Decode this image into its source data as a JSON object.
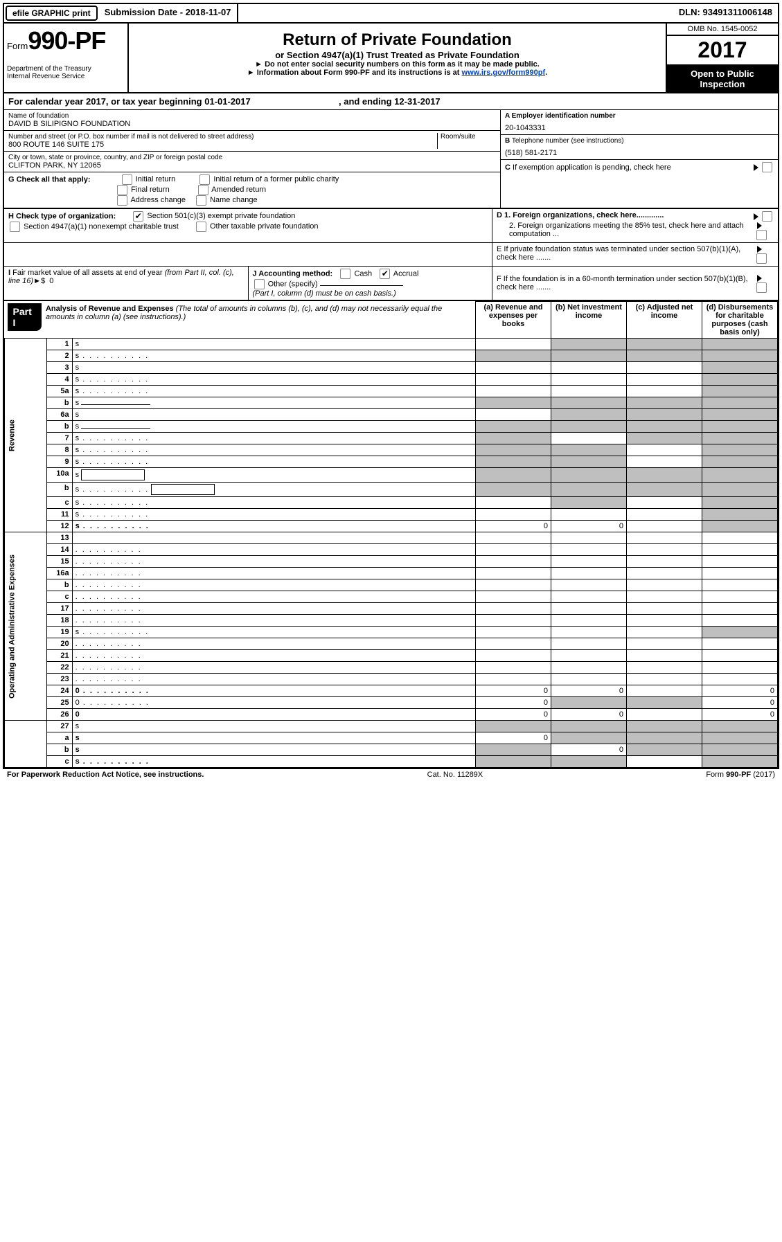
{
  "top": {
    "efile_btn": "efile GRAPHIC print",
    "submission_label": "Submission Date - 2018-11-07",
    "dln": "DLN: 93491311006148"
  },
  "header": {
    "form_word": "Form",
    "form_num": "990-PF",
    "dept1": "Department of the Treasury",
    "dept2": "Internal Revenue Service",
    "title": "Return of Private Foundation",
    "subtitle": "or Section 4947(a)(1) Trust Treated as Private Foundation",
    "instr1": "► Do not enter social security numbers on this form as it may be made public.",
    "instr2_pre": "► Information about Form 990-PF and its instructions is at ",
    "instr2_link": "www.irs.gov/form990pf",
    "instr2_post": ".",
    "omb": "OMB No. 1545-0052",
    "year": "2017",
    "open": "Open to Public Inspection"
  },
  "calendar": {
    "pre": "For calendar year 2017, or tax year beginning ",
    "begin": "01-01-2017",
    "mid": " , and ending ",
    "end": "12-31-2017"
  },
  "id": {
    "name_label": "Name of foundation",
    "name": "DAVID B SILIPIGNO FOUNDATION",
    "street_label": "Number and street (or P.O. box number if mail is not delivered to street address)",
    "room_label": "Room/suite",
    "street": "800 ROUTE 146 SUITE 175",
    "city_label": "City or town, state or province, country, and ZIP or foreign postal code",
    "city": "CLIFTON PARK, NY  12065",
    "ein_label": "A Employer identification number",
    "ein": "20-1043331",
    "tel_label": "B Telephone number (see instructions)",
    "tel": "(518) 581-2171",
    "c_label": "C If exemption application is pending, check here",
    "d1": "D 1. Foreign organizations, check here.............",
    "d2": "2. Foreign organizations meeting the 85% test, check here and attach computation ...",
    "e": "E  If private foundation status was terminated under section 507(b)(1)(A), check here .......",
    "f": "F  If the foundation is in a 60-month termination under section 507(b)(1)(B), check here .......",
    "g_label": "G Check all that apply:",
    "g_initial": "Initial return",
    "g_initial_former": "Initial return of a former public charity",
    "g_final": "Final return",
    "g_amended": "Amended return",
    "g_address": "Address change",
    "g_name": "Name change",
    "h_label": "H Check type of organization:",
    "h_501c3": "Section 501(c)(3) exempt private foundation",
    "h_4947": "Section 4947(a)(1) nonexempt charitable trust",
    "h_other": "Other taxable private foundation",
    "i_label": "I Fair market value of all assets at end of year (from Part II, col. (c), line 16)►$  0",
    "j_label": "J Accounting method:",
    "j_cash": "Cash",
    "j_accrual": "Accrual",
    "j_other": "Other (specify)",
    "j_note": "(Part I, column (d) must be on cash basis.)"
  },
  "part1": {
    "tab": "Part I",
    "title": "Analysis of Revenue and Expenses",
    "note": " (The total of amounts in columns (b), (c), and (d) may not necessarily equal the amounts in column (a) (see instructions).)",
    "col_a": "(a)   Revenue and expenses per books",
    "col_b": "(b)  Net investment income",
    "col_c": "(c)  Adjusted net income",
    "col_d": "(d)  Disbursements for charitable purposes (cash basis only)",
    "revenue_label": "Revenue",
    "expenses_label": "Operating and Administrative Expenses"
  },
  "rows_rev": [
    {
      "n": "1",
      "d": "s",
      "a": "",
      "b": "s",
      "c": "s"
    },
    {
      "n": "2",
      "d": "s",
      "dots": 1,
      "a": "s",
      "b": "s",
      "c": "s",
      "bold_not": 1
    },
    {
      "n": "3",
      "d": "s",
      "a": "",
      "b": "",
      "c": ""
    },
    {
      "n": "4",
      "d": "s",
      "dots": 1,
      "a": "",
      "b": "",
      "c": ""
    },
    {
      "n": "5a",
      "d": "s",
      "dots": 1,
      "a": "",
      "b": "",
      "c": ""
    },
    {
      "n": "b",
      "d": "s",
      "input": 1,
      "a": "s",
      "b": "s",
      "c": "s"
    },
    {
      "n": "6a",
      "d": "s",
      "a": "",
      "b": "s",
      "c": "s"
    },
    {
      "n": "b",
      "d": "s",
      "input": 1,
      "under": 1,
      "a": "s",
      "b": "s",
      "c": "s"
    },
    {
      "n": "7",
      "d": "s",
      "dots": 1,
      "a": "s",
      "b": "",
      "c": "s"
    },
    {
      "n": "8",
      "d": "s",
      "dots": 1,
      "a": "s",
      "b": "s",
      "c": ""
    },
    {
      "n": "9",
      "d": "s",
      "dots": 1,
      "a": "s",
      "b": "s",
      "c": ""
    },
    {
      "n": "10a",
      "d": "s",
      "box": 1,
      "a": "s",
      "b": "s",
      "c": "s"
    },
    {
      "n": "b",
      "d": "s",
      "dots": 1,
      "box": 1,
      "a": "s",
      "b": "s",
      "c": "s"
    },
    {
      "n": "c",
      "d": "s",
      "dots": 1,
      "a": "",
      "b": "s",
      "c": ""
    },
    {
      "n": "11",
      "d": "s",
      "dots": 1,
      "a": "",
      "b": "",
      "c": ""
    },
    {
      "n": "12",
      "d": "s",
      "dots": 1,
      "bold": 1,
      "a": "0",
      "b": "0",
      "c": ""
    }
  ],
  "rows_exp": [
    {
      "n": "13",
      "d": "",
      "a": "",
      "b": "",
      "c": ""
    },
    {
      "n": "14",
      "d": "",
      "dots": 1,
      "a": "",
      "b": "",
      "c": ""
    },
    {
      "n": "15",
      "d": "",
      "dots": 1,
      "a": "",
      "b": "",
      "c": ""
    },
    {
      "n": "16a",
      "d": "",
      "dots": 1,
      "a": "",
      "b": "",
      "c": ""
    },
    {
      "n": "b",
      "d": "",
      "dots": 1,
      "a": "",
      "b": "",
      "c": ""
    },
    {
      "n": "c",
      "d": "",
      "dots": 1,
      "a": "",
      "b": "",
      "c": ""
    },
    {
      "n": "17",
      "d": "",
      "dots": 1,
      "a": "",
      "b": "",
      "c": ""
    },
    {
      "n": "18",
      "d": "",
      "dots": 1,
      "a": "",
      "b": "",
      "c": ""
    },
    {
      "n": "19",
      "d": "s",
      "dots": 1,
      "a": "",
      "b": "",
      "c": ""
    },
    {
      "n": "20",
      "d": "",
      "dots": 1,
      "a": "",
      "b": "",
      "c": ""
    },
    {
      "n": "21",
      "d": "",
      "dots": 1,
      "a": "",
      "b": "",
      "c": ""
    },
    {
      "n": "22",
      "d": "",
      "dots": 1,
      "a": "",
      "b": "",
      "c": ""
    },
    {
      "n": "23",
      "d": "",
      "dots": 1,
      "a": "",
      "b": "",
      "c": ""
    },
    {
      "n": "24",
      "d": "0",
      "dots": 1,
      "bold": 1,
      "a": "0",
      "b": "0",
      "c": ""
    },
    {
      "n": "25",
      "d": "0",
      "dots": 1,
      "a": "0",
      "b": "s",
      "c": "s"
    },
    {
      "n": "26",
      "d": "0",
      "bold": 1,
      "a": "0",
      "b": "0",
      "c": ""
    }
  ],
  "rows_net": [
    {
      "n": "27",
      "d": "s",
      "a": "s",
      "b": "s",
      "c": "s"
    },
    {
      "n": "a",
      "d": "s",
      "bold": 1,
      "a": "0",
      "b": "s",
      "c": "s"
    },
    {
      "n": "b",
      "d": "s",
      "bold": 1,
      "a": "s",
      "b": "0",
      "c": "s"
    },
    {
      "n": "c",
      "d": "s",
      "bold": 1,
      "dots": 1,
      "a": "s",
      "b": "s",
      "c": ""
    }
  ],
  "footer": {
    "left": "For Paperwork Reduction Act Notice, see instructions.",
    "mid": "Cat. No. 11289X",
    "right": "Form 990-PF (2017)"
  }
}
